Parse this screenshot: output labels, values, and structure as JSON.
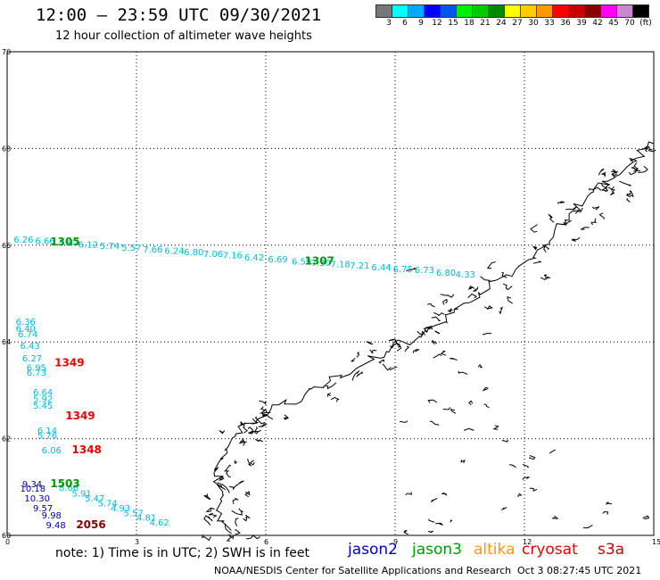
{
  "title": "12:00 – 23:59 UTC 09/30/2021",
  "subtitle": "12 hour collection of altimeter wave heights",
  "legend": {
    "colors": [
      "#777777",
      "#00ffff",
      "#00aaff",
      "#0000ff",
      "#0055ee",
      "#00ee00",
      "#00cc00",
      "#008800",
      "#ffff00",
      "#ffcc00",
      "#ff9900",
      "#ff0000",
      "#cc0000",
      "#880000",
      "#ff00ff",
      "#cc88cc",
      "#000000"
    ],
    "labels": [
      "3",
      "6",
      "9",
      "12",
      "15",
      "18",
      "21",
      "24",
      "27",
      "30",
      "33",
      "36",
      "39",
      "42",
      "45",
      "70",
      "(ft)"
    ]
  },
  "axes": {
    "lat_ticks": [
      "70",
      "68",
      "66",
      "64",
      "62",
      "60"
    ],
    "lon_ticks": [
      "0",
      "3",
      "6",
      "9",
      "12",
      "15"
    ]
  },
  "note": "note:  1) Time is in UTC;  2) SWH is in feet",
  "satellites": [
    {
      "name": "jason2",
      "color": "#0000cc"
    },
    {
      "name": "jason3",
      "color": "#009900"
    },
    {
      "name": "altika",
      "color": "#ff9900"
    },
    {
      "name": "cryosat",
      "color": "#ee0000"
    },
    {
      "name": "s3a",
      "color": "#cc0000"
    }
  ],
  "credit": "NOAA/NESDIS Center for Satellite Applications and Research",
  "timestamp": "Oct  3 08:27:45 UTC 2021",
  "tracks": [
    {
      "color": "#00bbdd",
      "labels": [
        {
          "text": "6.26",
          "lon": 0.15,
          "lat": 66.05
        },
        {
          "text": "6.66",
          "lon": 0.65,
          "lat": 66.02
        },
        {
          "text": "5.97",
          "lon": 1.2,
          "lat": 65.99
        },
        {
          "text": "6.12",
          "lon": 1.65,
          "lat": 65.95
        },
        {
          "text": "5.74",
          "lon": 2.15,
          "lat": 65.92
        },
        {
          "text": "5.57",
          "lon": 2.65,
          "lat": 65.89
        },
        {
          "text": "7.66",
          "lon": 3.15,
          "lat": 65.85
        },
        {
          "text": "6.24",
          "lon": 3.65,
          "lat": 65.82
        },
        {
          "text": "6.80",
          "lon": 4.1,
          "lat": 65.79
        },
        {
          "text": "7.06",
          "lon": 4.55,
          "lat": 65.76
        },
        {
          "text": "7.16",
          "lon": 5.0,
          "lat": 65.73
        },
        {
          "text": "6.42",
          "lon": 5.5,
          "lat": 65.68
        },
        {
          "text": "6.69",
          "lon": 6.05,
          "lat": 65.65
        },
        {
          "text": "6.59",
          "lon": 6.6,
          "lat": 65.6
        },
        {
          "text": "7.30",
          "lon": 7.05,
          "lat": 65.57
        },
        {
          "text": "7.18",
          "lon": 7.5,
          "lat": 65.54
        },
        {
          "text": "7.21",
          "lon": 7.95,
          "lat": 65.52
        },
        {
          "text": "6.44",
          "lon": 8.45,
          "lat": 65.48
        },
        {
          "text": "6.75",
          "lon": 8.95,
          "lat": 65.44
        },
        {
          "text": "6.73",
          "lon": 9.45,
          "lat": 65.42
        },
        {
          "text": "6.80",
          "lon": 9.95,
          "lat": 65.37
        },
        {
          "text": "4.33",
          "lon": 10.4,
          "lat": 65.33
        }
      ]
    },
    {
      "color": "#00bbdd",
      "labels": [
        {
          "text": "6.36",
          "lon": 0.2,
          "lat": 64.35
        },
        {
          "text": "6.40",
          "lon": 0.2,
          "lat": 64.22
        },
        {
          "text": "6.74",
          "lon": 0.25,
          "lat": 64.1
        },
        {
          "text": "6.43",
          "lon": 0.3,
          "lat": 63.86
        },
        {
          "text": "6.27",
          "lon": 0.35,
          "lat": 63.6
        },
        {
          "text": "6.95",
          "lon": 0.45,
          "lat": 63.4
        },
        {
          "text": "6.73",
          "lon": 0.45,
          "lat": 63.3
        },
        {
          "text": "6.64",
          "lon": 0.6,
          "lat": 62.9
        },
        {
          "text": "5.92",
          "lon": 0.6,
          "lat": 62.76
        },
        {
          "text": "5.45",
          "lon": 0.6,
          "lat": 62.62
        },
        {
          "text": "6.14",
          "lon": 0.7,
          "lat": 62.1
        },
        {
          "text": "5.76",
          "lon": 0.7,
          "lat": 62.0
        },
        {
          "text": "6.06",
          "lon": 0.8,
          "lat": 61.7
        }
      ]
    },
    {
      "color": "#00bbdd",
      "labels": [
        {
          "text": "8.66",
          "lon": 1.2,
          "lat": 60.92
        },
        {
          "text": "5.91",
          "lon": 1.5,
          "lat": 60.8
        },
        {
          "text": "5.47",
          "lon": 1.8,
          "lat": 60.7
        },
        {
          "text": "5.74",
          "lon": 2.1,
          "lat": 60.6
        },
        {
          "text": "4.93",
          "lon": 2.4,
          "lat": 60.5
        },
        {
          "text": "5.57",
          "lon": 2.7,
          "lat": 60.4
        },
        {
          "text": "4.81",
          "lon": 3.0,
          "lat": 60.3
        },
        {
          "text": "4.62",
          "lon": 3.3,
          "lat": 60.2
        }
      ]
    },
    {
      "color": "#0000aa",
      "labels": [
        {
          "text": "9.34",
          "lon": 0.35,
          "lat": 61.0
        },
        {
          "text": "10.18",
          "lon": 0.3,
          "lat": 60.9
        },
        {
          "text": "10.30",
          "lon": 0.4,
          "lat": 60.7
        },
        {
          "text": "9.57",
          "lon": 0.6,
          "lat": 60.5
        },
        {
          "text": "9.98",
          "lon": 0.8,
          "lat": 60.35
        },
        {
          "text": "9.48",
          "lon": 0.9,
          "lat": 60.15
        }
      ]
    }
  ],
  "times": [
    {
      "text": "1305",
      "color": "#009900",
      "lon": 1.0,
      "lat": 66.0
    },
    {
      "text": "1307",
      "color": "#009900",
      "lon": 6.9,
      "lat": 65.6
    },
    {
      "text": "1349",
      "color": "#ee0000",
      "lon": 1.1,
      "lat": 63.5
    },
    {
      "text": "1349",
      "color": "#ee0000",
      "lon": 1.35,
      "lat": 62.4
    },
    {
      "text": "1348",
      "color": "#ee0000",
      "lon": 1.5,
      "lat": 61.7
    },
    {
      "text": "1503",
      "color": "#009900",
      "lon": 1.0,
      "lat": 61.0
    },
    {
      "text": "2056",
      "color": "#880000",
      "lon": 1.6,
      "lat": 60.15
    }
  ]
}
